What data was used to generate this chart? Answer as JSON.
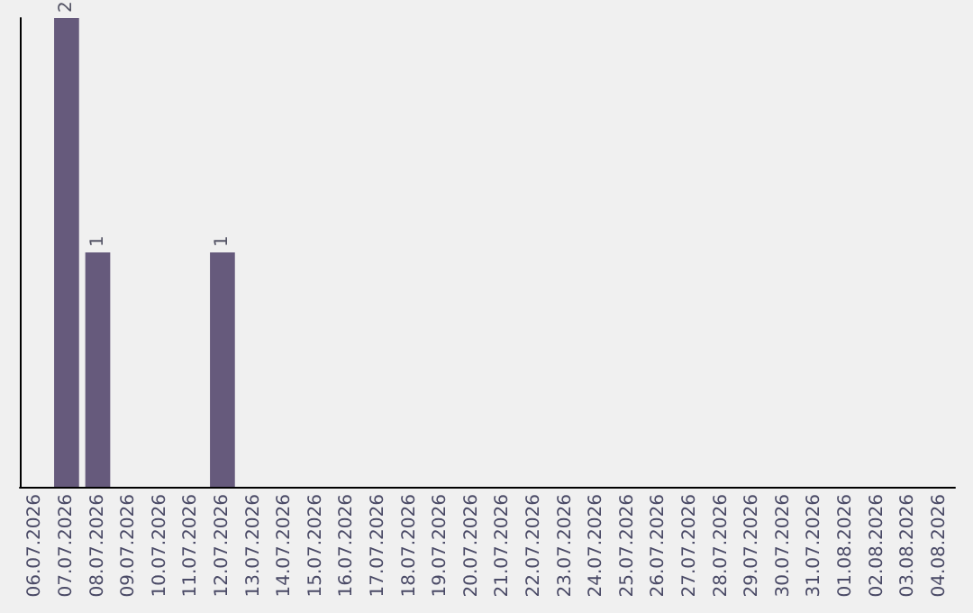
{
  "chart_data": {
    "type": "bar",
    "categories": [
      "06.07.2026",
      "07.07.2026",
      "08.07.2026",
      "09.07.2026",
      "10.07.2026",
      "11.07.2026",
      "12.07.2026",
      "13.07.2026",
      "14.07.2026",
      "15.07.2026",
      "16.07.2026",
      "17.07.2026",
      "18.07.2026",
      "19.07.2026",
      "20.07.2026",
      "21.07.2026",
      "22.07.2026",
      "23.07.2026",
      "24.07.2026",
      "25.07.2026",
      "26.07.2026",
      "27.07.2026",
      "28.07.2026",
      "29.07.2026",
      "30.07.2026",
      "31.07.2026",
      "01.08.2026",
      "02.08.2026",
      "03.08.2026",
      "04.08.2026"
    ],
    "values": [
      0,
      2,
      1,
      0,
      0,
      0,
      1,
      0,
      0,
      0,
      0,
      0,
      0,
      0,
      0,
      0,
      0,
      0,
      0,
      0,
      0,
      0,
      0,
      0,
      0,
      0,
      0,
      0,
      0,
      0
    ],
    "value_labels": [
      null,
      "2",
      "1",
      null,
      null,
      null,
      "1",
      null,
      null,
      null,
      null,
      null,
      null,
      null,
      null,
      null,
      null,
      null,
      null,
      null,
      null,
      null,
      null,
      null,
      null,
      null,
      null,
      null,
      null,
      null
    ],
    "color": "#665a7c",
    "tick_labels": "x"
  }
}
